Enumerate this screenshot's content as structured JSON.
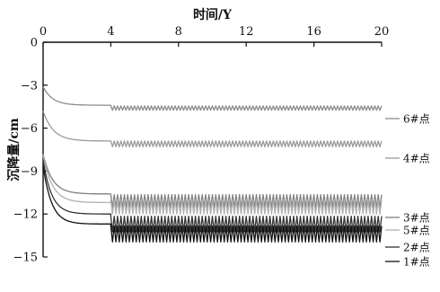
{
  "chart_data": {
    "type": "line",
    "title": "",
    "xlabel": "时间/Y",
    "ylabel": "沉降量/cm",
    "x_axis_position": "top",
    "xlim": [
      0,
      20
    ],
    "ylim": [
      -15,
      0
    ],
    "xticks": [
      "0",
      "4",
      "8",
      "12",
      "16",
      "20"
    ],
    "yticks": [
      "0",
      "−3",
      "−6",
      "−9",
      "−12",
      "−15"
    ],
    "legend_placement": "right-end labels",
    "grid": false,
    "series": [
      {
        "name": "6#点",
        "color": "#8c8c8c",
        "start": -3.1,
        "plateau": -4.4,
        "tau": 0.55,
        "late_level": -4.6,
        "late_amp": 0.15
      },
      {
        "name": "4#点",
        "color": "#9a9a9a",
        "start": -4.8,
        "plateau": -6.9,
        "tau": 0.6,
        "late_level": -7.1,
        "late_amp": 0.2
      },
      {
        "name": "3#点",
        "color": "#7f7f7f",
        "start": -7.8,
        "plateau": -10.6,
        "tau": 0.55,
        "late_level": -11.1,
        "late_amp": 0.45
      },
      {
        "name": "5#点",
        "color": "#b0b0b0",
        "start": -7.9,
        "plateau": -11.2,
        "tau": 0.55,
        "late_level": -11.5,
        "late_amp": 0.5
      },
      {
        "name": "2#点",
        "color": "#333333",
        "start": -8.2,
        "plateau": -12.0,
        "tau": 0.5,
        "late_level": -12.7,
        "late_amp": 0.55
      },
      {
        "name": "1#点",
        "color": "#111111",
        "start": -8.6,
        "plateau": -12.7,
        "tau": 0.5,
        "late_level": -13.4,
        "late_amp": 0.55
      }
    ],
    "step_at_x": 4,
    "oscillation_period": 0.2
  }
}
